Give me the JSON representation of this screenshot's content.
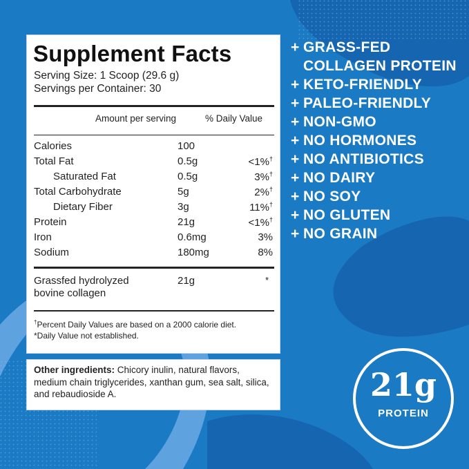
{
  "facts": {
    "title": "Supplement Facts",
    "serving_size": "Serving Size: 1 Scoop (29.6 g)",
    "servings_per_container": "Servings per Container: 30",
    "col_amount": "Amount per serving",
    "col_dv": "% Daily Value",
    "rows": [
      {
        "name": "Calories",
        "amount": "100",
        "dv": ""
      },
      {
        "name": "Total Fat",
        "amount": "0.5g",
        "dv": "<1%",
        "mark": "†"
      },
      {
        "name": "Saturated Fat",
        "amount": "0.5g",
        "dv": "3%",
        "mark": "†"
      },
      {
        "name": "Total Carbohydrate",
        "amount": "5g",
        "dv": "2%",
        "mark": "†"
      },
      {
        "name": "Dietary Fiber",
        "amount": "3g",
        "dv": "11%",
        "mark": "†"
      },
      {
        "name": "Protein",
        "amount": "21g",
        "dv": "<1%",
        "mark": "†"
      },
      {
        "name": "Iron",
        "amount": "0.6mg",
        "dv": "3%"
      },
      {
        "name": "Sodium",
        "amount": "180mg",
        "dv": "8%"
      }
    ],
    "collagen": {
      "line1": "Grassfed hydrolyzed",
      "line2": "bovine collagen",
      "amount": "21g",
      "dv": "*"
    },
    "footnote_dagger": "†",
    "footnote_1": "Percent Daily Values are based on a 2000 calorie diet.",
    "footnote_2": "*Daily Value not established."
  },
  "ingredients": {
    "label": "Other ingredients:",
    "text": "Chicory inulin, natural flavors, medium chain triglycerides, xanthan gum, sea salt, silica, and rebaudioside A."
  },
  "claims": {
    "plus": "+",
    "grass_fed_line1": "GRASS-FED",
    "grass_fed_line2": "COLLAGEN PROTEIN",
    "items": [
      "KETO-FRIENDLY",
      "PALEO-FRIENDLY",
      "NON-GMO",
      "NO HORMONES",
      "NO ANTIBIOTICS",
      "NO DAIRY",
      "NO SOY",
      "NO GLUTEN",
      "NO GRAIN"
    ]
  },
  "badge": {
    "value": "21g",
    "label": "PROTEIN"
  },
  "colors": {
    "background": "#1b7ac4",
    "blob_dark": "#1565b0",
    "swoosh_light": "#5ea3e0",
    "panel": "#ffffff",
    "text_dark": "#222222"
  }
}
